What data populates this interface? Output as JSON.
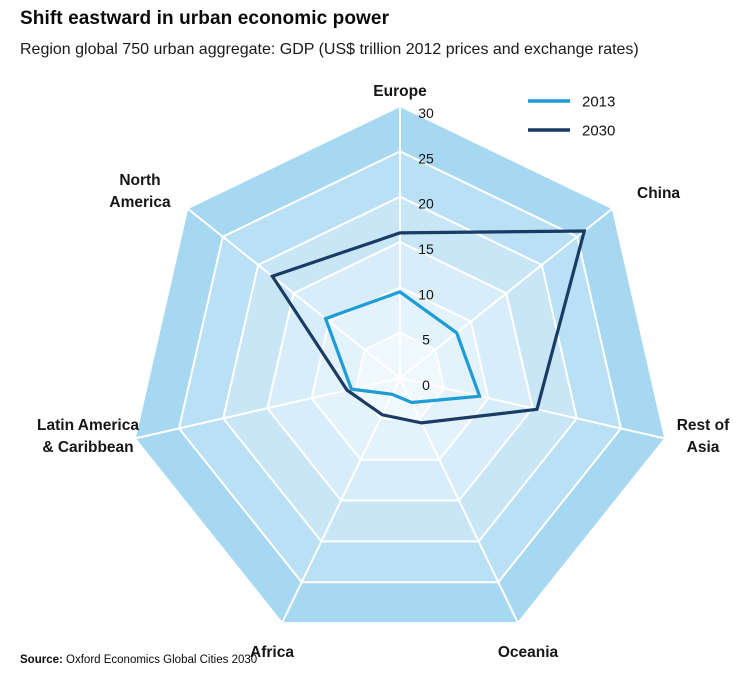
{
  "header": {
    "title": "Shift eastward in urban economic power",
    "subtitle": "Region global 750 urban aggregate: GDP (US$ trillion 2012 prices and exchange rates)"
  },
  "footer": {
    "source_label": "Source:",
    "source_text": "Oxford Economics Global Cities 2030"
  },
  "legend": [
    {
      "label": "2013",
      "color": "#1e9cd7"
    },
    {
      "label": "2030",
      "color": "#1a3b63"
    }
  ],
  "chart_data": {
    "type": "radar",
    "title": "Shift eastward in urban economic power",
    "subtitle": "Region global 750 urban aggregate: GDP (US$ trillion 2012 prices and exchange rates)",
    "categories": [
      "Europe",
      "China",
      "Rest of\nAsia",
      "Oceania",
      "Africa",
      "Latin America\n& Caribbean",
      "North\nAmerica"
    ],
    "series": [
      {
        "name": "2013",
        "color": "#1e9cd7",
        "values": [
          9.5,
          8,
          9,
          3,
          2,
          5.5,
          10.5
        ]
      },
      {
        "name": "2030",
        "color": "#1a3b63",
        "values": [
          16,
          26,
          15.5,
          5.5,
          4.5,
          6,
          18
        ]
      }
    ],
    "rmax": 30,
    "rstep": 5,
    "tick_labels": [
      "30",
      "25",
      "20",
      "15",
      "10",
      "5",
      "0"
    ],
    "ring_colors": [
      "#a7d8f1",
      "#b9e0f4",
      "#c9e6f7",
      "#d7edf9",
      "#e3f2fb",
      "#eff8fd"
    ],
    "grid_color": "#ffffff",
    "legend_position": "top-right"
  }
}
